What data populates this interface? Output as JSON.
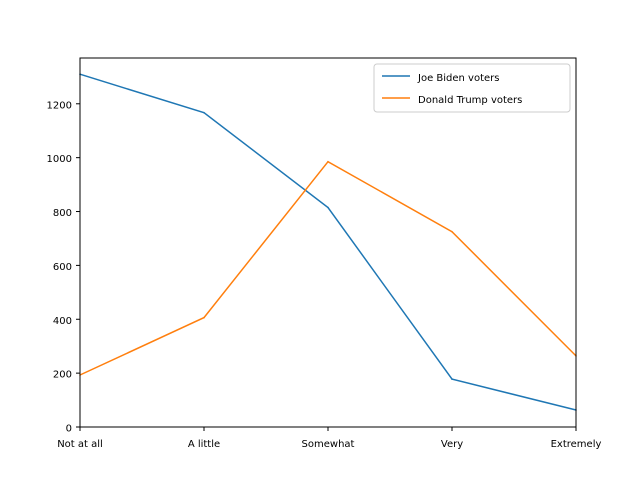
{
  "chart_data": {
    "type": "line",
    "categories": [
      "Not at all",
      "A little",
      "Somewhat",
      "Very",
      "Extremely"
    ],
    "series": [
      {
        "name": "Joe Biden voters",
        "color": "#1f77b4",
        "values": [
          1310,
          1167,
          815,
          178,
          63
        ]
      },
      {
        "name": "Donald Trump voters",
        "color": "#ff7f0e",
        "values": [
          193,
          406,
          985,
          725,
          264
        ]
      }
    ],
    "ylim": [
      0,
      1370
    ],
    "yticks": [
      0,
      200,
      400,
      600,
      800,
      1000,
      1200
    ],
    "legend": "top-right",
    "grid": false
  }
}
